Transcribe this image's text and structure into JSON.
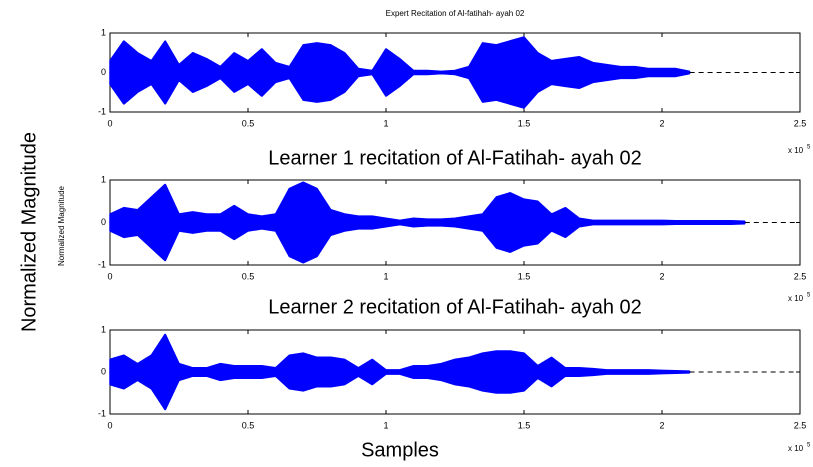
{
  "figure": {
    "ylabel": "Normalized Magnitude",
    "ylabel_small": "Normalized Magnitude",
    "xlabel": "Samples"
  },
  "chart_data": [
    {
      "type": "waveform",
      "title": "Expert Recitation of Al-fatihah- ayah 02",
      "color": "#0000ff",
      "x": [
        0,
        0.05,
        0.1,
        0.15,
        0.2,
        0.25,
        0.3,
        0.35,
        0.4,
        0.45,
        0.5,
        0.55,
        0.6,
        0.65,
        0.7,
        0.75,
        0.8,
        0.85,
        0.9,
        0.95,
        1.0,
        1.05,
        1.1,
        1.15,
        1.2,
        1.25,
        1.3,
        1.35,
        1.4,
        1.45,
        1.5,
        1.55,
        1.6,
        1.65,
        1.7,
        1.75,
        1.8,
        1.85,
        1.9,
        1.95,
        2.0,
        2.05,
        2.1
      ],
      "values": [
        0.3,
        0.8,
        0.5,
        0.3,
        0.8,
        0.2,
        0.5,
        0.35,
        0.15,
        0.5,
        0.3,
        0.6,
        0.25,
        0.15,
        0.7,
        0.75,
        0.7,
        0.5,
        0.1,
        0.05,
        0.6,
        0.35,
        0.05,
        0.05,
        0.03,
        0.05,
        0.15,
        0.75,
        0.7,
        0.8,
        0.9,
        0.5,
        0.3,
        0.35,
        0.4,
        0.25,
        0.2,
        0.15,
        0.15,
        0.1,
        0.1,
        0.1,
        0.03
      ],
      "xlim": [
        0,
        2.5
      ],
      "xticks": [
        0,
        0.5,
        1,
        1.5,
        2,
        2.5
      ],
      "ylim": [
        -1,
        1
      ],
      "yticks": [
        -1,
        0,
        1
      ],
      "x_scale_label": "x 10",
      "x_scale_exponent": "5"
    },
    {
      "type": "waveform",
      "title": "Learner 1 recitation of Al-Fatihah- ayah 02",
      "color": "#0000ff",
      "x": [
        0,
        0.05,
        0.1,
        0.15,
        0.2,
        0.25,
        0.3,
        0.35,
        0.4,
        0.45,
        0.5,
        0.55,
        0.6,
        0.65,
        0.7,
        0.75,
        0.8,
        0.85,
        0.9,
        0.95,
        1.0,
        1.05,
        1.1,
        1.15,
        1.2,
        1.25,
        1.3,
        1.35,
        1.4,
        1.45,
        1.5,
        1.55,
        1.6,
        1.65,
        1.7,
        1.75,
        1.8,
        1.85,
        1.9,
        1.95,
        2.0,
        2.05,
        2.1,
        2.15,
        2.2,
        2.25,
        2.3
      ],
      "values": [
        0.2,
        0.35,
        0.3,
        0.6,
        0.9,
        0.2,
        0.25,
        0.2,
        0.2,
        0.4,
        0.2,
        0.15,
        0.2,
        0.8,
        0.95,
        0.8,
        0.3,
        0.2,
        0.15,
        0.15,
        0.1,
        0.05,
        0.1,
        0.08,
        0.08,
        0.1,
        0.15,
        0.2,
        0.6,
        0.7,
        0.55,
        0.5,
        0.2,
        0.35,
        0.1,
        0.05,
        0.05,
        0.05,
        0.05,
        0.05,
        0.05,
        0.04,
        0.04,
        0.04,
        0.04,
        0.04,
        0.03
      ],
      "xlim": [
        0,
        2.5
      ],
      "xticks": [
        0,
        0.5,
        1,
        1.5,
        2,
        2.5
      ],
      "ylim": [
        -1,
        1
      ],
      "yticks": [
        -1,
        0,
        1
      ],
      "x_scale_label": "x 10",
      "x_scale_exponent": "5"
    },
    {
      "type": "waveform",
      "title": "Learner 2 recitation of Al-Fatihah- ayah 02",
      "color": "#0000ff",
      "x": [
        0,
        0.05,
        0.1,
        0.15,
        0.2,
        0.25,
        0.3,
        0.35,
        0.4,
        0.45,
        0.5,
        0.55,
        0.6,
        0.65,
        0.7,
        0.75,
        0.8,
        0.85,
        0.9,
        0.95,
        1.0,
        1.05,
        1.1,
        1.15,
        1.2,
        1.25,
        1.3,
        1.35,
        1.4,
        1.45,
        1.5,
        1.55,
        1.6,
        1.65,
        1.7,
        1.75,
        1.8,
        1.85,
        1.9,
        1.95,
        2.0,
        2.05,
        2.1
      ],
      "values": [
        0.3,
        0.4,
        0.2,
        0.4,
        0.9,
        0.2,
        0.1,
        0.1,
        0.2,
        0.15,
        0.15,
        0.15,
        0.1,
        0.4,
        0.45,
        0.35,
        0.35,
        0.3,
        0.1,
        0.3,
        0.05,
        0.05,
        0.15,
        0.15,
        0.2,
        0.3,
        0.35,
        0.45,
        0.5,
        0.5,
        0.45,
        0.15,
        0.35,
        0.1,
        0.1,
        0.08,
        0.05,
        0.05,
        0.05,
        0.05,
        0.04,
        0.03,
        0.02
      ],
      "xlim": [
        0,
        2.5
      ],
      "xticks": [
        0,
        0.5,
        1,
        1.5,
        2,
        2.5
      ],
      "ylim": [
        -1,
        1
      ],
      "yticks": [
        -1,
        0,
        1
      ],
      "x_scale_label": "x 10",
      "x_scale_exponent": "5"
    }
  ]
}
